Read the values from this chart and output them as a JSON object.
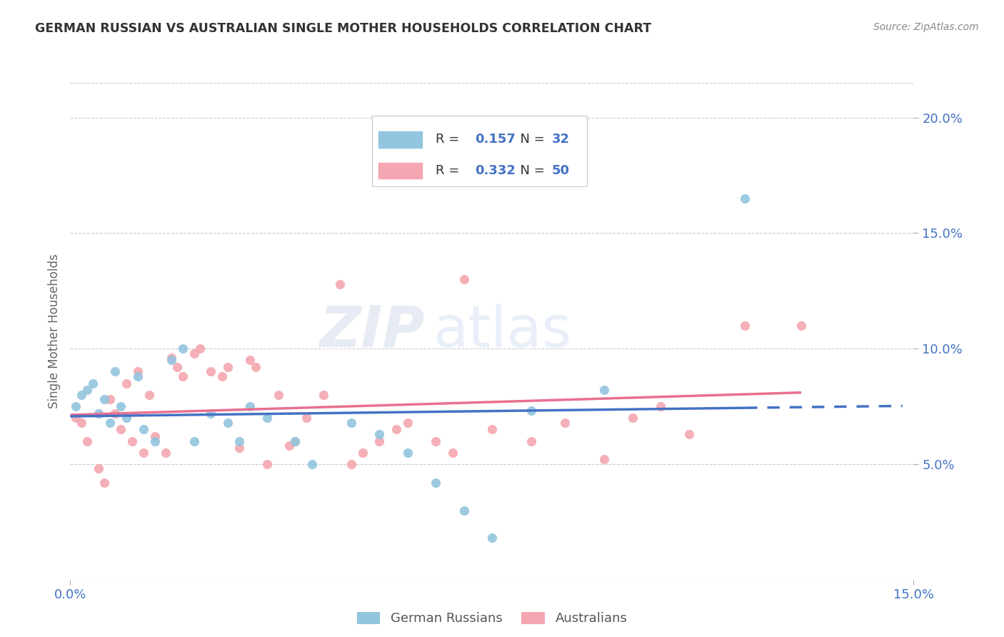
{
  "title": "GERMAN RUSSIAN VS AUSTRALIAN SINGLE MOTHER HOUSEHOLDS CORRELATION CHART",
  "source": "Source: ZipAtlas.com",
  "ylabel": "Single Mother Households",
  "xlim": [
    0.0,
    0.15
  ],
  "ylim": [
    0.0,
    0.215
  ],
  "x_ticks": [
    0.0,
    0.15
  ],
  "x_tick_labels": [
    "0.0%",
    "15.0%"
  ],
  "y_ticks_right": [
    0.05,
    0.1,
    0.15,
    0.2
  ],
  "y_tick_labels_right": [
    "5.0%",
    "10.0%",
    "15.0%",
    "20.0%"
  ],
  "german_russian_R": 0.157,
  "german_russian_N": 32,
  "australian_R": 0.332,
  "australian_N": 50,
  "color_blue": "#92c5de",
  "color_pink": "#f4a7b0",
  "color_blue_text": "#4472c4",
  "color_pink_text": "#4472c4",
  "color_trendline_blue": "#4472c4",
  "color_trendline_pink": "#e87090",
  "watermark_zip": "ZIP",
  "watermark_atlas": "atlas",
  "german_russian_x": [
    0.001,
    0.002,
    0.003,
    0.004,
    0.005,
    0.006,
    0.007,
    0.008,
    0.009,
    0.01,
    0.012,
    0.013,
    0.015,
    0.018,
    0.02,
    0.022,
    0.025,
    0.028,
    0.03,
    0.032,
    0.035,
    0.04,
    0.043,
    0.05,
    0.055,
    0.06,
    0.065,
    0.07,
    0.075,
    0.082,
    0.095,
    0.12
  ],
  "german_russian_y": [
    0.075,
    0.08,
    0.082,
    0.085,
    0.072,
    0.078,
    0.068,
    0.09,
    0.075,
    0.07,
    0.088,
    0.065,
    0.06,
    0.095,
    0.1,
    0.06,
    0.072,
    0.068,
    0.06,
    0.075,
    0.07,
    0.06,
    0.05,
    0.068,
    0.063,
    0.055,
    0.042,
    0.03,
    0.018,
    0.073,
    0.082,
    0.165
  ],
  "australian_x": [
    0.001,
    0.002,
    0.003,
    0.005,
    0.006,
    0.007,
    0.008,
    0.009,
    0.01,
    0.011,
    0.012,
    0.013,
    0.014,
    0.015,
    0.017,
    0.018,
    0.019,
    0.02,
    0.022,
    0.023,
    0.025,
    0.027,
    0.028,
    0.03,
    0.032,
    0.033,
    0.035,
    0.037,
    0.039,
    0.04,
    0.042,
    0.045,
    0.048,
    0.05,
    0.052,
    0.055,
    0.058,
    0.06,
    0.065,
    0.068,
    0.07,
    0.075,
    0.082,
    0.088,
    0.095,
    0.1,
    0.105,
    0.11,
    0.12,
    0.13
  ],
  "australian_y": [
    0.07,
    0.068,
    0.06,
    0.048,
    0.042,
    0.078,
    0.072,
    0.065,
    0.085,
    0.06,
    0.09,
    0.055,
    0.08,
    0.062,
    0.055,
    0.096,
    0.092,
    0.088,
    0.098,
    0.1,
    0.09,
    0.088,
    0.092,
    0.057,
    0.095,
    0.092,
    0.05,
    0.08,
    0.058,
    0.06,
    0.07,
    0.08,
    0.128,
    0.05,
    0.055,
    0.06,
    0.065,
    0.068,
    0.06,
    0.055,
    0.13,
    0.065,
    0.06,
    0.068,
    0.052,
    0.07,
    0.075,
    0.063,
    0.11,
    0.11
  ]
}
